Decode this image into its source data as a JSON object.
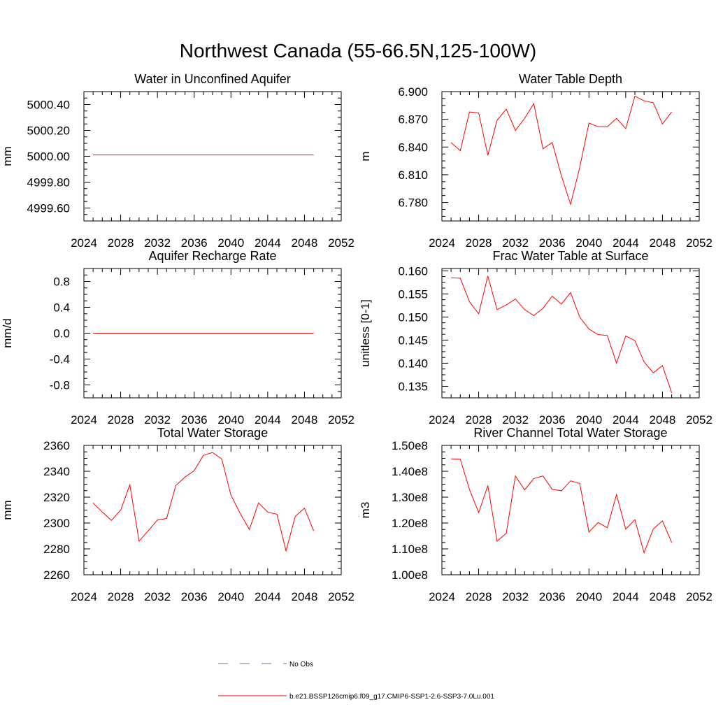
{
  "page_title": "Northwest Canada (55-66.5N,125-100W)",
  "series_color": "#ff0000",
  "obs_color": "#6a6fb8",
  "legend": {
    "obs_label": "No Obs",
    "model_label": "b.e21.BSSP126cmip6.f09_g17.CMIP6-SSP1-2.6-SSP3-7.0Lu.001"
  },
  "chart_data": [
    {
      "type": "line",
      "title": "Water in Unconfined Aquifer",
      "ylabel": "mm",
      "xlim": [
        2024,
        2052
      ],
      "xticks": [
        2024,
        2028,
        2032,
        2036,
        2040,
        2044,
        2048,
        2052
      ],
      "ylim": [
        4999.5,
        5000.5
      ],
      "yticks": [
        4999.6,
        4999.8,
        5000.0,
        5000.2,
        5000.4
      ],
      "ytick_labels": [
        "4999.60",
        "4999.80",
        "5000.00",
        "5000.20",
        "5000.40"
      ],
      "x": [
        2025,
        2049
      ],
      "y": [
        5000.01,
        5000.01
      ]
    },
    {
      "type": "line",
      "title": "Water Table Depth",
      "ylabel": "m",
      "xlim": [
        2024,
        2052
      ],
      "xticks": [
        2024,
        2028,
        2032,
        2036,
        2040,
        2044,
        2048,
        2052
      ],
      "ylim": [
        6.76,
        6.9
      ],
      "yticks": [
        6.78,
        6.81,
        6.84,
        6.87,
        6.9
      ],
      "ytick_labels": [
        "6.780",
        "6.810",
        "6.840",
        "6.870",
        "6.900"
      ],
      "x": [
        2025,
        2026,
        2027,
        2028,
        2029,
        2030,
        2031,
        2032,
        2033,
        2034,
        2035,
        2036,
        2037,
        2038,
        2039,
        2040,
        2041,
        2042,
        2043,
        2044,
        2045,
        2046,
        2047,
        2048,
        2049
      ],
      "y": [
        6.845,
        6.836,
        6.878,
        6.877,
        6.831,
        6.869,
        6.881,
        6.858,
        6.871,
        6.887,
        6.838,
        6.845,
        6.809,
        6.778,
        6.818,
        6.866,
        6.862,
        6.862,
        6.871,
        6.86,
        6.895,
        6.89,
        6.888,
        6.865,
        6.878
      ]
    },
    {
      "type": "line",
      "title": "Aquifer Recharge Rate",
      "ylabel": "mm/d",
      "xlim": [
        2024,
        2052
      ],
      "xticks": [
        2024,
        2028,
        2032,
        2036,
        2040,
        2044,
        2048,
        2052
      ],
      "ylim": [
        -1.0,
        1.0
      ],
      "yticks": [
        -0.8,
        -0.4,
        0.0,
        0.4,
        0.8
      ],
      "ytick_labels": [
        "-0.8",
        "-0.4",
        "0.0",
        "0.4",
        "0.8"
      ],
      "x": [
        2025,
        2049
      ],
      "y": [
        0.0,
        0.0
      ]
    },
    {
      "type": "line",
      "title": "Frac Water Table at Surface",
      "ylabel": "unitless [0-1]",
      "xlim": [
        2024,
        2052
      ],
      "xticks": [
        2024,
        2028,
        2032,
        2036,
        2040,
        2044,
        2048,
        2052
      ],
      "ylim": [
        0.1325,
        0.1605
      ],
      "yticks": [
        0.135,
        0.14,
        0.145,
        0.15,
        0.155,
        0.16
      ],
      "ytick_labels": [
        "0.135",
        "0.140",
        "0.145",
        "0.150",
        "0.155",
        "0.160"
      ],
      "x": [
        2025,
        2026,
        2027,
        2028,
        2029,
        2030,
        2031,
        2032,
        2033,
        2034,
        2035,
        2036,
        2037,
        2038,
        2039,
        2040,
        2041,
        2042,
        2043,
        2044,
        2045,
        2046,
        2047,
        2048,
        2049
      ],
      "y": [
        0.1585,
        0.1584,
        0.1533,
        0.1507,
        0.1589,
        0.1516,
        0.1526,
        0.1539,
        0.1516,
        0.1503,
        0.1519,
        0.1545,
        0.1528,
        0.1553,
        0.15,
        0.1474,
        0.1462,
        0.146,
        0.14,
        0.1459,
        0.1449,
        0.1403,
        0.1379,
        0.1395,
        0.1336
      ]
    },
    {
      "type": "line",
      "title": "Total Water Storage",
      "ylabel": "mm",
      "xlim": [
        2024,
        2052
      ],
      "xticks": [
        2024,
        2028,
        2032,
        2036,
        2040,
        2044,
        2048,
        2052
      ],
      "ylim": [
        2260,
        2360
      ],
      "yticks": [
        2260,
        2280,
        2300,
        2320,
        2340,
        2360
      ],
      "ytick_labels": [
        "2260",
        "2280",
        "2300",
        "2320",
        "2340",
        "2360"
      ],
      "x": [
        2025,
        2026,
        2027,
        2028,
        2029,
        2030,
        2031,
        2032,
        2033,
        2034,
        2035,
        2036,
        2037,
        2038,
        2039,
        2040,
        2041,
        2042,
        2043,
        2044,
        2045,
        2046,
        2047,
        2048,
        2049
      ],
      "y": [
        2315.5,
        2308.5,
        2302,
        2310,
        2329.5,
        2286,
        2294,
        2302.3,
        2303.5,
        2329,
        2335.5,
        2340.5,
        2352.3,
        2354.5,
        2349.5,
        2321.5,
        2307.5,
        2295,
        2315.5,
        2308.5,
        2306.8,
        2278.5,
        2305.2,
        2311.5,
        2294
      ]
    },
    {
      "type": "line",
      "title": "River Channel Total Water Storage",
      "ylabel": "m3",
      "xlim": [
        2024,
        2052
      ],
      "xticks": [
        2024,
        2028,
        2032,
        2036,
        2040,
        2044,
        2048,
        2052
      ],
      "ylim": [
        100000000.0,
        150000000.0
      ],
      "yticks": [
        100000000.0,
        110000000.0,
        120000000.0,
        130000000.0,
        140000000.0,
        150000000.0
      ],
      "ytick_labels": [
        "1.00e8",
        "1.10e8",
        "1.20e8",
        "1.30e8",
        "1.40e8",
        "1.50e8"
      ],
      "x": [
        2025,
        2026,
        2027,
        2028,
        2029,
        2030,
        2031,
        2032,
        2033,
        2034,
        2035,
        2036,
        2037,
        2038,
        2039,
        2040,
        2041,
        2042,
        2043,
        2044,
        2045,
        2046,
        2047,
        2048,
        2049
      ],
      "y": [
        144800000.0,
        144700000.0,
        133000000.0,
        124000000.0,
        134500000.0,
        113000000.0,
        116000000.0,
        138200000.0,
        132800000.0,
        137200000.0,
        138200000.0,
        133000000.0,
        132500000.0,
        136300000.0,
        135300000.0,
        116500000.0,
        120200000.0,
        118200000.0,
        131000000.0,
        117600000.0,
        121300000.0,
        108500000.0,
        117700000.0,
        120800000.0,
        112500000.0
      ]
    }
  ]
}
